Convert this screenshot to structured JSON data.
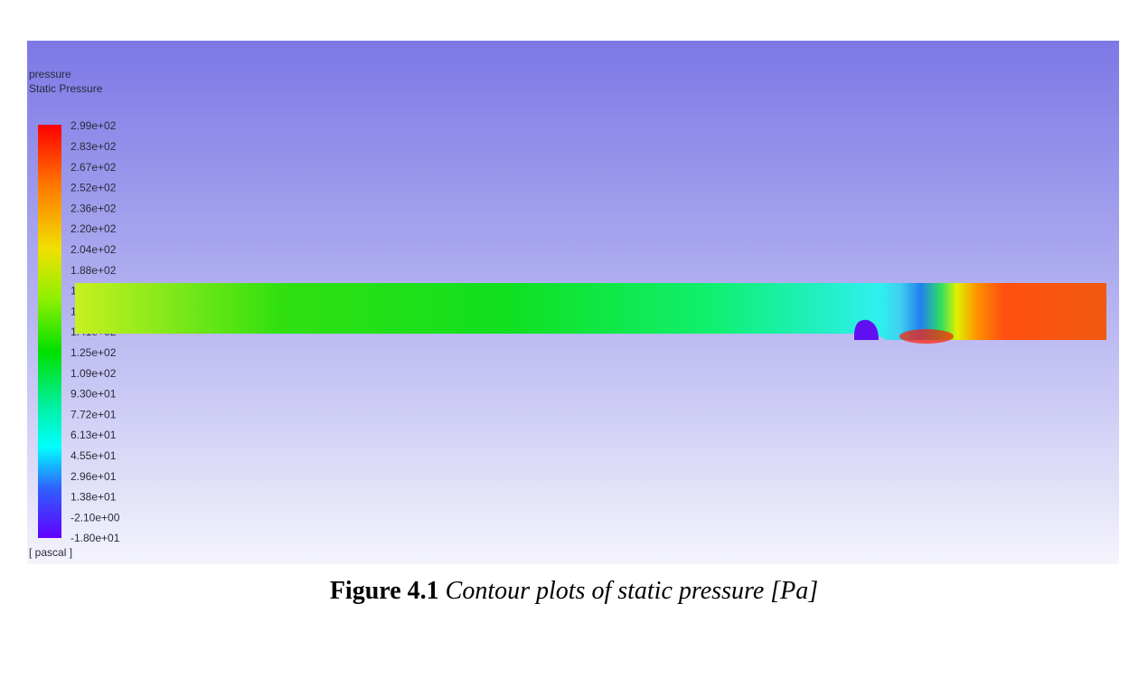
{
  "figure": {
    "legend_title": "pressure",
    "legend_subtitle": "Static Pressure",
    "colorbar_labels": [
      "2.99e+02",
      "2.83e+02",
      "2.67e+02",
      "2.52e+02",
      "2.36e+02",
      "2.20e+02",
      "2.04e+02",
      "1.88e+02",
      "1.72e+02",
      "1.56e+02",
      "1.41e+02",
      "1.25e+02",
      "1.09e+02",
      "9.30e+01",
      "7.72e+01",
      "6.13e+01",
      "4.55e+01",
      "2.96e+01",
      "1.38e+01",
      "-2.10e+00",
      "-1.80e+01"
    ],
    "unit": "[ pascal ]"
  },
  "caption": {
    "number": "Figure 4.1",
    "text": "Contour plots of static pressure [Pa]"
  }
}
